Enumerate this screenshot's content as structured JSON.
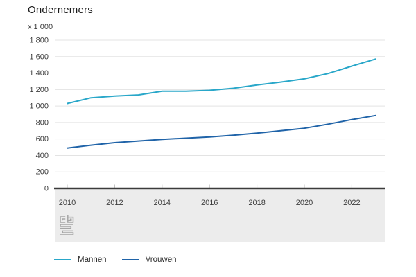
{
  "title": "Ondernemers",
  "unit_label": "x 1 000",
  "colors": {
    "mannen": "#29a7c9",
    "vrouwen": "#1f63a8",
    "gridline": "#e3e3e3",
    "zero_axis": "#3b3b3b",
    "footer_band": "#ececec",
    "tick": "#bdbdbd",
    "axis_text": "#3d3d3d",
    "logo": "#a5a5a5"
  },
  "chart_data": {
    "type": "line",
    "title": "Ondernemers",
    "unit_label": "x 1 000",
    "x": [
      2010,
      2011,
      2012,
      2013,
      2014,
      2015,
      2016,
      2017,
      2018,
      2019,
      2020,
      2021,
      2022,
      2023
    ],
    "series": [
      {
        "name": "Mannen",
        "color": "#29a7c9",
        "values": [
          1030,
          1100,
          1120,
          1135,
          1180,
          1180,
          1190,
          1215,
          1255,
          1290,
          1330,
          1395,
          1485,
          1570
        ]
      },
      {
        "name": "Vrouwen",
        "color": "#1f63a8",
        "values": [
          490,
          525,
          555,
          575,
          595,
          610,
          625,
          645,
          670,
          700,
          730,
          780,
          835,
          885
        ]
      }
    ],
    "ylim": [
      0,
      1800
    ],
    "yticks": [
      0,
      200,
      400,
      600,
      800,
      1000,
      1200,
      1400,
      1600,
      1800
    ],
    "ytick_labels": [
      "0",
      "200",
      "400",
      "600",
      "800",
      "1 000",
      "1 200",
      "1 400",
      "1 600",
      "1 800"
    ],
    "xticks": [
      2010,
      2012,
      2014,
      2016,
      2018,
      2020,
      2022
    ],
    "xtick_labels": [
      "2010",
      "2012",
      "2014",
      "2016",
      "2018",
      "2020",
      "2022"
    ],
    "grid": true,
    "legend_position": "bottom"
  },
  "legend": {
    "items": [
      {
        "label": "Mannen"
      },
      {
        "label": "Vrouwen"
      }
    ]
  },
  "logo": {
    "name": "cbs-logo"
  }
}
